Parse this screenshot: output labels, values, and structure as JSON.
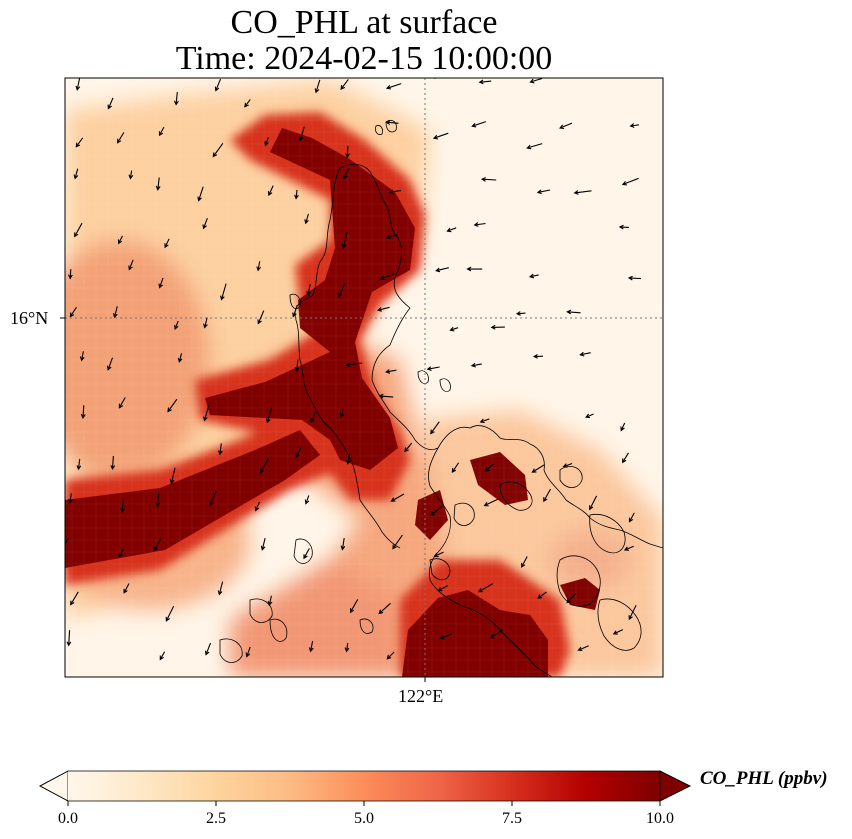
{
  "title_line1": "CO_PHL at surface",
  "title_line2": "Time: 2024-02-15 10:00:00",
  "map": {
    "lat_tick_label": "16°N",
    "lon_tick_label": "122°E",
    "gridlines": "dotted",
    "features": [
      "coastlines",
      "wind-vectors"
    ]
  },
  "colorbar": {
    "label": "CO_PHL (ppbv)",
    "colormap": "OrRd",
    "colors": [
      "#fff7ec",
      "#fee8c8",
      "#fdd49e",
      "#fdbb84",
      "#fc8d59",
      "#ef6548",
      "#d7301f",
      "#b30000",
      "#7f0000"
    ],
    "range": [
      0,
      10
    ],
    "extend": "both",
    "ticks": [
      "0.0",
      "2.5",
      "5.0",
      "7.5",
      "10.0"
    ]
  }
}
